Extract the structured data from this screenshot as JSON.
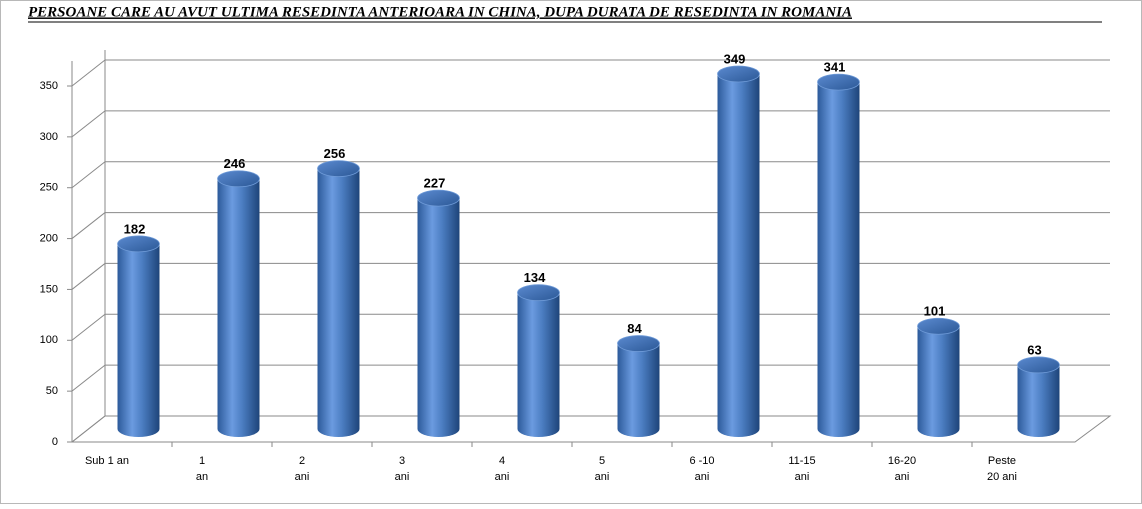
{
  "chart_data": {
    "type": "bar",
    "title": "PERSOANE CARE AU AVUT ULTIMA RESEDINTA ANTERIOARA IN CHINA, DUPA DURATA DE RESEDINTA IN ROMANIA",
    "categories": [
      [
        "Sub 1 an"
      ],
      [
        "1",
        "an"
      ],
      [
        "2",
        "ani"
      ],
      [
        "3",
        "ani"
      ],
      [
        "4",
        "ani"
      ],
      [
        "5",
        "ani"
      ],
      [
        "6 -10",
        "ani"
      ],
      [
        "11-15",
        "ani"
      ],
      [
        "16-20",
        "ani"
      ],
      [
        "Peste",
        "20 ani"
      ]
    ],
    "values": [
      182,
      246,
      256,
      227,
      134,
      84,
      349,
      341,
      101,
      63
    ],
    "color": "#4a7cc0",
    "label_color": "#e00000",
    "ylim": [
      0,
      350
    ],
    "yticks": [
      0,
      50,
      100,
      150,
      200,
      250,
      300,
      350
    ],
    "grid": true
  }
}
